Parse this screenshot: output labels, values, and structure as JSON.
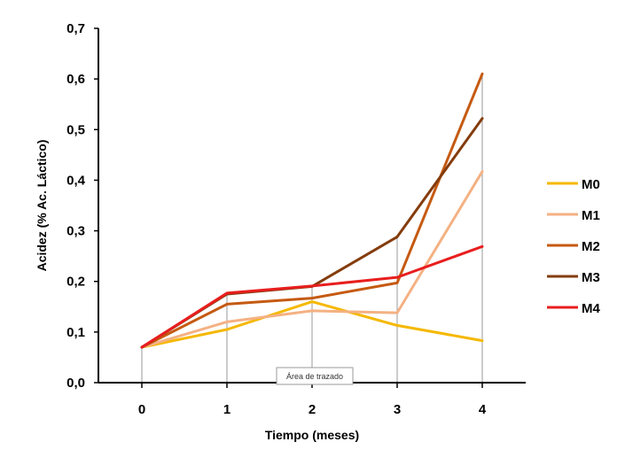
{
  "chart_data": {
    "type": "line",
    "x": [
      0,
      1,
      2,
      3,
      4
    ],
    "x_tick_labels": [
      "0",
      "1",
      "2",
      "3",
      "4"
    ],
    "y_tick_labels": [
      "0,0",
      "0,1",
      "0,2",
      "0,3",
      "0,4",
      "0,5",
      "0,6",
      "0,7"
    ],
    "ylim": [
      0,
      0.7
    ],
    "xlabel": "Tiempo (meses)",
    "ylabel": "Acidez (% Ac. Láctico)",
    "grid": false,
    "drop_lines": true,
    "legend_position": "right",
    "series": [
      {
        "name": "M0",
        "color": "#F5B800",
        "values": [
          0.07,
          0.105,
          0.16,
          0.113,
          0.083
        ]
      },
      {
        "name": "M1",
        "color": "#F4B183",
        "values": [
          0.07,
          0.12,
          0.142,
          0.138,
          0.417
        ]
      },
      {
        "name": "M2",
        "color": "#C55A11",
        "values": [
          0.07,
          0.155,
          0.167,
          0.197,
          0.61
        ]
      },
      {
        "name": "M3",
        "color": "#843C0C",
        "values": [
          0.07,
          0.175,
          0.19,
          0.288,
          0.522
        ]
      },
      {
        "name": "M4",
        "color": "#E81E1E",
        "values": [
          0.07,
          0.177,
          0.191,
          0.208,
          0.269
        ]
      }
    ]
  },
  "tooltip": {
    "label": "Área de trazado"
  }
}
